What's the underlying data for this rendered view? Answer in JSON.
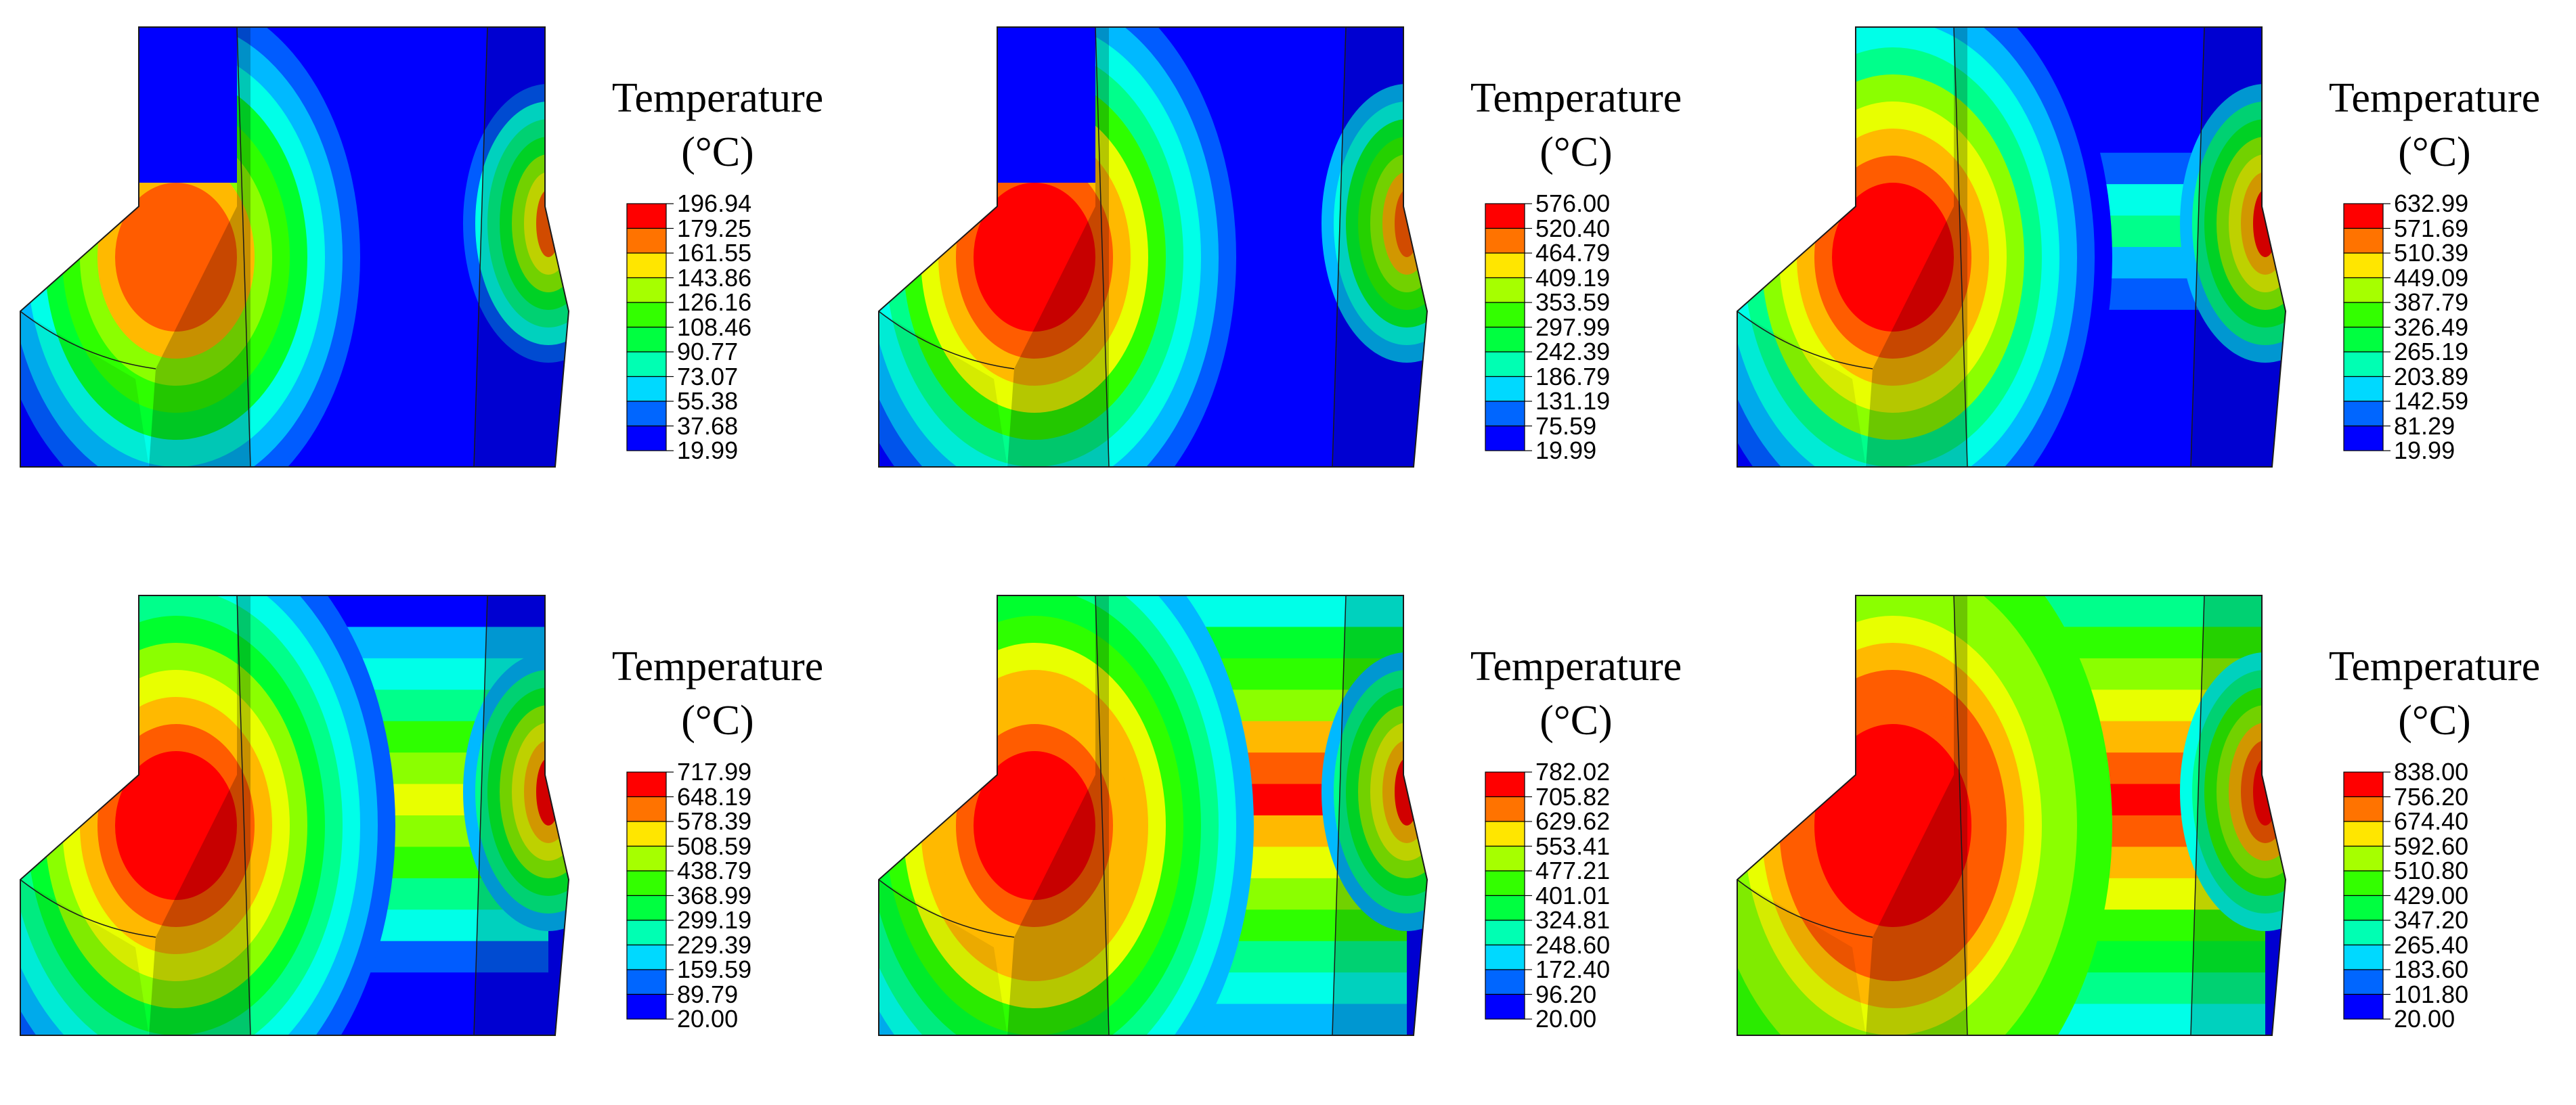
{
  "colors": {
    "contour": [
      "#0000ff",
      "#005cff",
      "#00b9ff",
      "#00ffe8",
      "#00ff8b",
      "#00ff2e",
      "#2eff00",
      "#8bff00",
      "#e8ff00",
      "#ffb900",
      "#ff5c00",
      "#ff0000"
    ],
    "legend": [
      "#ff0000",
      "#ff7300",
      "#ffe600",
      "#a6ff00",
      "#33ff00",
      "#00ff40",
      "#00ffb3",
      "#00d9ff",
      "#0066ff",
      "#0000ff"
    ],
    "edge": "#1a1a1a"
  },
  "panels": [
    {
      "title": "Temperature",
      "unit": "(°C)",
      "labels": [
        "196.94",
        "179.25",
        "161.55",
        "143.86",
        "126.16",
        "108.46",
        "90.77",
        "73.07",
        "55.38",
        "37.68",
        "19.99"
      ],
      "state": {
        "leftBand": [
          0.85,
          0.05,
          0.0
        ],
        "center": 0.0,
        "rightSpot": 0.85
      }
    },
    {
      "title": "Temperature",
      "unit": "(°C)",
      "labels": [
        "576.00",
        "520.40",
        "464.79",
        "409.19",
        "353.59",
        "297.99",
        "242.39",
        "186.79",
        "131.19",
        "75.59",
        "19.99"
      ],
      "state": {
        "leftBand": [
          0.95,
          0.25,
          0.1
        ],
        "center": 0.0,
        "rightSpot": 0.9
      }
    },
    {
      "title": "Temperature",
      "unit": "(°C)",
      "labels": [
        "632.99",
        "571.69",
        "510.39",
        "449.09",
        "387.79",
        "326.49",
        "265.19",
        "203.89",
        "142.59",
        "81.29",
        "19.99"
      ],
      "state": {
        "leftBand": [
          0.95,
          0.4,
          0.15
        ],
        "center": 0.4,
        "rightSpot": 0.95
      }
    },
    {
      "title": "Temperature",
      "unit": "(°C)",
      "labels": [
        "717.99",
        "648.19",
        "578.39",
        "508.59",
        "438.79",
        "368.99",
        "299.19",
        "229.39",
        "159.59",
        "89.79",
        "20.00"
      ],
      "state": {
        "leftBand": [
          0.95,
          0.5,
          0.2
        ],
        "center": 0.75,
        "rightSpot": 0.95
      }
    },
    {
      "title": "Temperature",
      "unit": "(°C)",
      "labels": [
        "782.02",
        "705.82",
        "629.62",
        "553.41",
        "477.21",
        "401.01",
        "324.81",
        "248.60",
        "172.40",
        "96.20",
        "20.00"
      ],
      "state": {
        "leftBand": [
          0.95,
          0.6,
          0.35
        ],
        "center": 0.95,
        "rightSpot": 0.95
      }
    },
    {
      "title": "Temperature",
      "unit": "(°C)",
      "labels": [
        "838.00",
        "756.20",
        "674.40",
        "592.60",
        "510.80",
        "429.00",
        "347.20",
        "265.40",
        "183.60",
        "101.80",
        "20.00"
      ],
      "state": {
        "leftBand": [
          1.0,
          0.8,
          0.6
        ],
        "center": 1.0,
        "rightSpot": 1.0
      }
    }
  ]
}
